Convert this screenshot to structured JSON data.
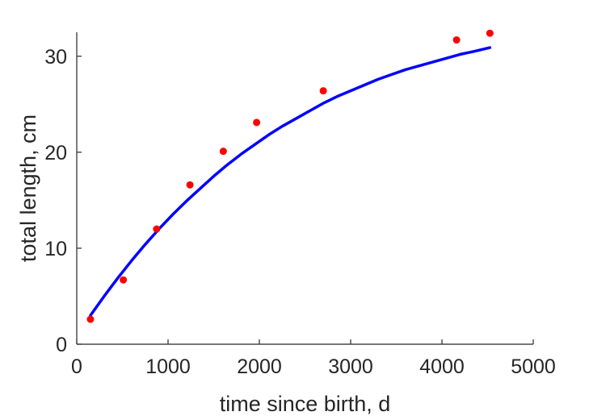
{
  "chart_data": {
    "type": "scatter",
    "title": "",
    "xlabel": "time since birth, d",
    "ylabel": "total length, cm",
    "xlim": [
      0,
      5000
    ],
    "ylim": [
      0,
      32.5
    ],
    "xticks": [
      0,
      1000,
      2000,
      3000,
      4000,
      5000
    ],
    "yticks": [
      0,
      10,
      20,
      30
    ],
    "grid": false,
    "legend": "none",
    "series": [
      {
        "kind": "points",
        "color": "#ff0000",
        "x": [
          150,
          510,
          875,
          1240,
          1605,
          1970,
          2700,
          4160,
          4525
        ],
        "y": [
          2.6,
          6.7,
          12.0,
          16.6,
          20.1,
          23.1,
          26.4,
          31.7,
          32.4
        ]
      },
      {
        "kind": "line",
        "color": "#0000ff",
        "x": [
          150,
          300,
          450,
          600,
          750,
          900,
          1050,
          1200,
          1350,
          1500,
          1650,
          1800,
          1950,
          2100,
          2250,
          2400,
          2550,
          2700,
          2850,
          3000,
          3150,
          3300,
          3450,
          3600,
          3750,
          3900,
          4050,
          4200,
          4350,
          4525
        ],
        "y": [
          3.0,
          5.0,
          6.9,
          8.7,
          10.4,
          12.0,
          13.5,
          14.9,
          16.2,
          17.5,
          18.7,
          19.8,
          20.8,
          21.8,
          22.7,
          23.5,
          24.3,
          25.1,
          25.8,
          26.4,
          27.0,
          27.6,
          28.1,
          28.6,
          29.0,
          29.4,
          29.8,
          30.2,
          30.5,
          30.9
        ]
      }
    ]
  }
}
